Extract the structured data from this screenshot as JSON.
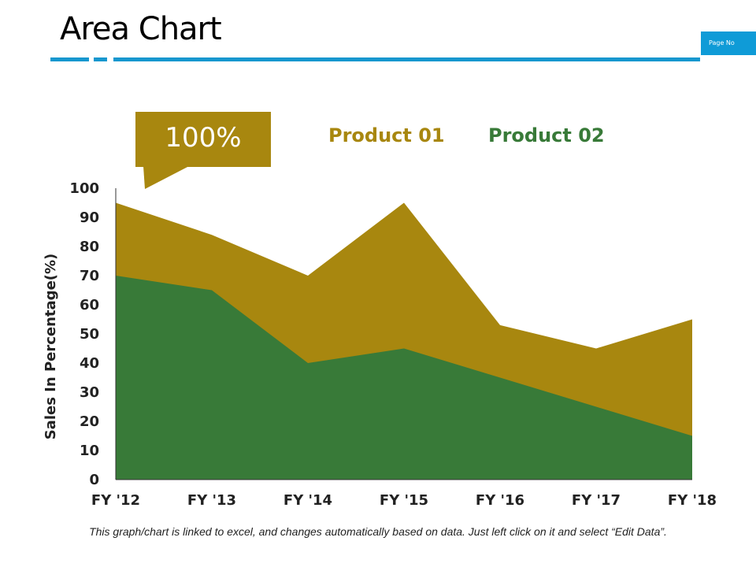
{
  "header": {
    "title": "Area Chart",
    "page_no": "Page No"
  },
  "callout": {
    "text": "100%"
  },
  "footer": {
    "note": "This graph/chart is linked to excel, and changes automatically based on data. Just left click on it and select “Edit Data”."
  },
  "colors": {
    "accent": "#1797cf",
    "product01": "#a8870f",
    "product02": "#387a38"
  },
  "chart_data": {
    "type": "area",
    "categories": [
      "FY '12",
      "FY '13",
      "FY '14",
      "FY '15",
      "FY '16",
      "FY '17",
      "FY '18"
    ],
    "series": [
      {
        "name": "Product 01",
        "values": [
          95,
          84,
          70,
          95,
          53,
          45,
          55
        ]
      },
      {
        "name": "Product 02",
        "values": [
          70,
          65,
          40,
          45,
          35,
          25,
          15
        ]
      }
    ],
    "ylabel": "Sales In Percentage(%)",
    "ylim": [
      0,
      100
    ],
    "yticks": [
      0,
      10,
      20,
      30,
      40,
      50,
      60,
      70,
      80,
      90,
      100
    ],
    "grid": false,
    "legend": "top"
  }
}
